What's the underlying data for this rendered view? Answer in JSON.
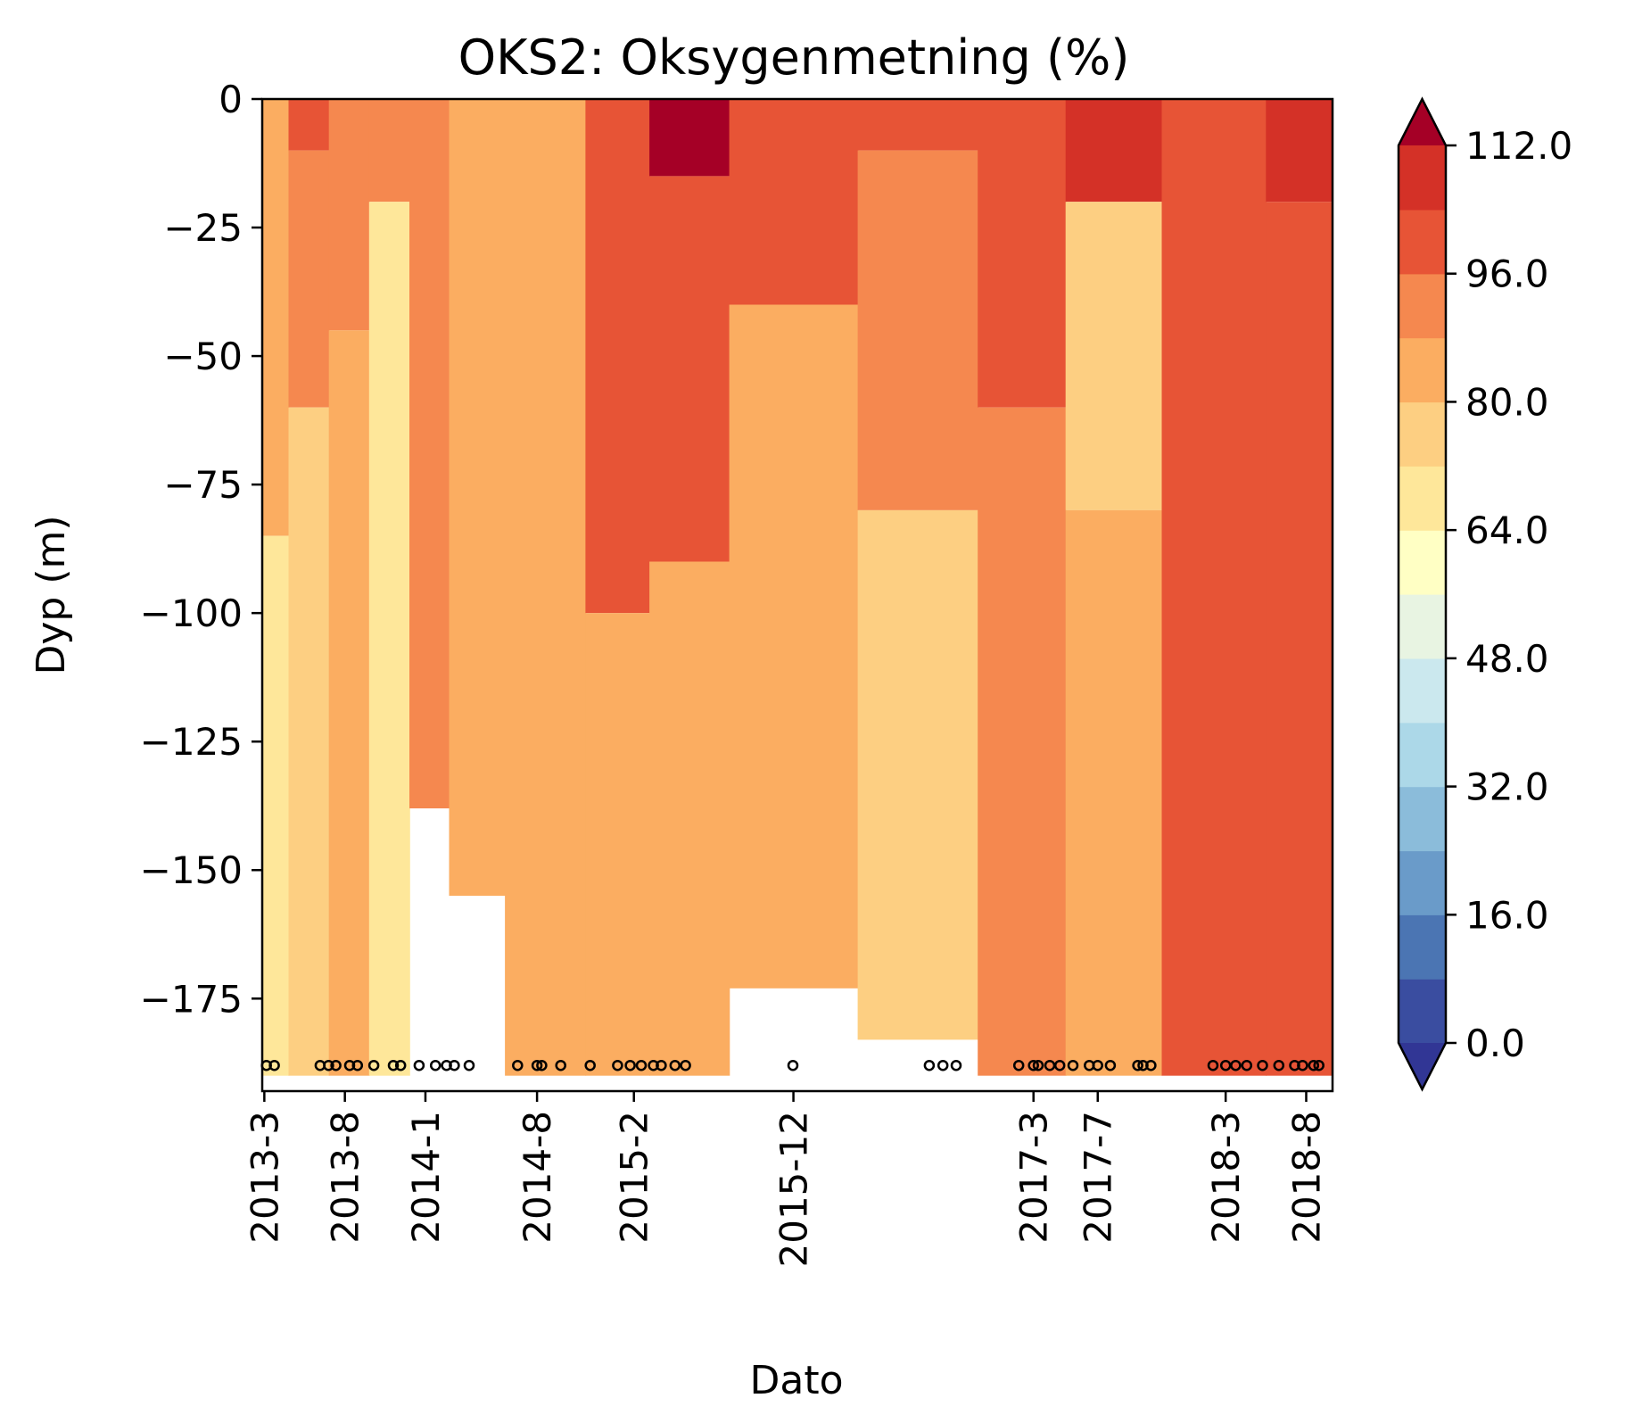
{
  "chart_data": {
    "type": "contourf",
    "title": "OKS2: Oksygenmetning (%)",
    "xlabel": "Dato",
    "ylabel": "Dyp (m)",
    "ylim": [
      -193,
      0
    ],
    "x_tick_labels": [
      {
        "label": "2013-3",
        "date": "2013-03-01"
      },
      {
        "label": "2013-8",
        "date": "2013-08-01"
      },
      {
        "label": "2014-1",
        "date": "2014-01-01"
      },
      {
        "label": "2014-8",
        "date": "2014-08-01"
      },
      {
        "label": "2015-2",
        "date": "2015-02-01"
      },
      {
        "label": "2015-12",
        "date": "2015-12-01"
      },
      {
        "label": "2017-3",
        "date": "2017-03-01"
      },
      {
        "label": "2017-7",
        "date": "2017-07-01"
      },
      {
        "label": "2018-3",
        "date": "2018-03-01"
      },
      {
        "label": "2018-8",
        "date": "2018-08-01"
      }
    ],
    "y_ticks": [
      0,
      -25,
      -50,
      -75,
      -100,
      -125,
      -150,
      -175
    ],
    "y_tick_labels": [
      "0",
      "−25",
      "−50",
      "−75",
      "−100",
      "−125",
      "−150",
      "−175"
    ],
    "colorbar": {
      "levels": [
        0,
        8,
        16,
        24,
        32,
        40,
        48,
        56,
        64,
        72,
        80,
        88,
        96,
        104,
        112
      ],
      "tick_values": [
        0,
        16,
        32,
        48,
        64,
        80,
        96,
        112
      ],
      "tick_labels": [
        "0.0",
        "16.0",
        "32.0",
        "48.0",
        "64.0",
        "80.0",
        "96.0",
        "112.0"
      ],
      "colors": [
        "#3a4da0",
        "#4b75b3",
        "#6a9bc9",
        "#8bbcda",
        "#acd8e8",
        "#cbe8ee",
        "#e8f4e2",
        "#ffffc4",
        "#fee79a",
        "#fdcf82",
        "#fbad61",
        "#f5884f",
        "#e75436",
        "#d43127"
      ],
      "under_color": "#313695",
      "over_color": "#a50026",
      "extend": "both"
    },
    "approx_profiles": [
      {
        "date": "2013-03-01",
        "max_depth": -190,
        "layers": [
          {
            "from": 0,
            "to": -85,
            "value": 84
          },
          {
            "from": -85,
            "to": -190,
            "value": 66
          }
        ]
      },
      {
        "date": "2013-06-01",
        "max_depth": -190,
        "layers": [
          {
            "from": 0,
            "to": -10,
            "value": 98
          },
          {
            "from": -10,
            "to": -60,
            "value": 90
          },
          {
            "from": -60,
            "to": -190,
            "value": 75
          }
        ]
      },
      {
        "date": "2013-08-01",
        "max_depth": -190,
        "layers": [
          {
            "from": 0,
            "to": -45,
            "value": 90
          },
          {
            "from": -45,
            "to": -190,
            "value": 82
          }
        ]
      },
      {
        "date": "2013-11-01",
        "max_depth": -190,
        "layers": [
          {
            "from": 0,
            "to": -20,
            "value": 90
          },
          {
            "from": -20,
            "to": -190,
            "value": 70
          }
        ]
      },
      {
        "date": "2014-01-01",
        "max_depth": -138,
        "layers": [
          {
            "from": 0,
            "to": -138,
            "value": 90
          }
        ]
      },
      {
        "date": "2014-04-01",
        "max_depth": -155,
        "layers": [
          {
            "from": 0,
            "to": -155,
            "value": 84
          }
        ]
      },
      {
        "date": "2014-08-01",
        "max_depth": -190,
        "layers": [
          {
            "from": 0,
            "to": -190,
            "value": 84
          }
        ]
      },
      {
        "date": "2015-02-01",
        "max_depth": -190,
        "layers": [
          {
            "from": 0,
            "to": -100,
            "value": 102
          },
          {
            "from": -100,
            "to": -190,
            "value": 84
          }
        ]
      },
      {
        "date": "2015-04-01",
        "max_depth": -190,
        "layers": [
          {
            "from": 0,
            "to": -15,
            "value": 112
          },
          {
            "from": -15,
            "to": -90,
            "value": 102
          },
          {
            "from": -90,
            "to": -190,
            "value": 84
          }
        ]
      },
      {
        "date": "2015-12-01",
        "max_depth": -173,
        "layers": [
          {
            "from": 0,
            "to": -40,
            "value": 98
          },
          {
            "from": -40,
            "to": -173,
            "value": 84
          }
        ]
      },
      {
        "date": "2016-08-01",
        "max_depth": -183,
        "layers": [
          {
            "from": 0,
            "to": -10,
            "value": 102
          },
          {
            "from": -10,
            "to": -80,
            "value": 90
          },
          {
            "from": -80,
            "to": -183,
            "value": 78
          }
        ]
      },
      {
        "date": "2017-03-01",
        "max_depth": -190,
        "layers": [
          {
            "from": 0,
            "to": -60,
            "value": 98
          },
          {
            "from": -60,
            "to": -190,
            "value": 90
          }
        ]
      },
      {
        "date": "2017-07-01",
        "max_depth": -190,
        "layers": [
          {
            "from": 0,
            "to": -20,
            "value": 110
          },
          {
            "from": -20,
            "to": -80,
            "value": 76
          },
          {
            "from": -80,
            "to": -190,
            "value": 84
          }
        ]
      },
      {
        "date": "2018-03-01",
        "max_depth": -190,
        "layers": [
          {
            "from": 0,
            "to": -190,
            "value": 98
          }
        ]
      },
      {
        "date": "2018-08-01",
        "max_depth": -190,
        "layers": [
          {
            "from": 0,
            "to": -20,
            "value": 104
          },
          {
            "from": -20,
            "to": -190,
            "value": 96
          }
        ]
      }
    ],
    "sample_markers": {
      "depth": -188,
      "dates": [
        "2013-03-05",
        "2013-03-20",
        "2013-06-15",
        "2013-07-01",
        "2013-07-15",
        "2013-08-10",
        "2013-08-25",
        "2013-09-25",
        "2013-11-01",
        "2013-11-15",
        "2013-12-20",
        "2014-01-20",
        "2014-02-10",
        "2014-02-25",
        "2014-03-25",
        "2014-06-25",
        "2014-08-01",
        "2014-08-10",
        "2014-09-15",
        "2014-11-10",
        "2015-01-01",
        "2015-01-25",
        "2015-02-15",
        "2015-03-10",
        "2015-03-25",
        "2015-04-20",
        "2015-05-10",
        "2015-11-30",
        "2016-08-15",
        "2016-09-10",
        "2016-10-05",
        "2017-02-01",
        "2017-03-01",
        "2017-03-10",
        "2017-04-01",
        "2017-04-20",
        "2017-05-15",
        "2017-06-15",
        "2017-07-01",
        "2017-07-25",
        "2017-09-15",
        "2017-09-25",
        "2017-10-10",
        "2018-02-05",
        "2018-03-01",
        "2018-03-20",
        "2018-04-10",
        "2018-05-10",
        "2018-06-10",
        "2018-07-10",
        "2018-07-25",
        "2018-08-15",
        "2018-08-25"
      ]
    }
  }
}
